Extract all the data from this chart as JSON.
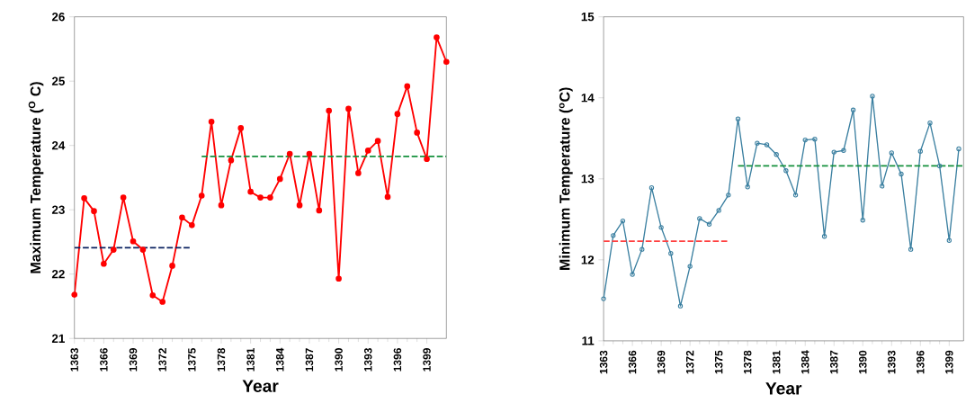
{
  "chart_data": [
    {
      "type": "line",
      "xlabel": "Year",
      "ylabel": "Maximum Temperature ($^{O}$ C)",
      "xlim": [
        1363,
        1401
      ],
      "ylim": [
        21,
        26
      ],
      "xticks": [
        1363,
        1366,
        1369,
        1372,
        1375,
        1378,
        1381,
        1384,
        1387,
        1390,
        1393,
        1396,
        1399
      ],
      "yticks": [
        21,
        22,
        23,
        24,
        25,
        26
      ],
      "grid": false,
      "series": [
        {
          "color": "#ff0000",
          "marker": "circle",
          "line_style": "solid",
          "x": [
            1363,
            1364,
            1365,
            1366,
            1367,
            1368,
            1369,
            1370,
            1371,
            1372,
            1373,
            1374,
            1375,
            1376,
            1377,
            1378,
            1379,
            1380,
            1381,
            1382,
            1383,
            1384,
            1385,
            1386,
            1387,
            1388,
            1389,
            1390,
            1391,
            1392,
            1393,
            1394,
            1395,
            1396,
            1397,
            1398,
            1399,
            1400,
            1401
          ],
          "values": [
            21.68,
            23.18,
            22.98,
            22.16,
            22.38,
            23.19,
            22.51,
            22.38,
            21.67,
            21.57,
            22.13,
            22.88,
            22.76,
            23.22,
            24.37,
            23.07,
            23.77,
            24.27,
            23.28,
            23.19,
            23.19,
            23.48,
            23.87,
            23.07,
            23.87,
            22.99,
            24.54,
            21.93,
            24.57,
            23.57,
            23.92,
            24.07,
            23.2,
            24.49,
            24.92,
            24.2,
            23.79,
            25.68,
            25.3
          ]
        },
        {
          "color": "#0b2260",
          "marker": "none",
          "line_style": "dashed",
          "x": [
            1363,
            1375
          ],
          "values": [
            22.41,
            22.41
          ]
        },
        {
          "color": "#14903c",
          "marker": "none",
          "line_style": "dashed",
          "x": [
            1376,
            1401
          ],
          "values": [
            23.83,
            23.83
          ]
        }
      ]
    },
    {
      "type": "line",
      "xlabel": "Year",
      "ylabel": "Minimum Temperature ($^{o}$C)",
      "xlim": [
        1363,
        1400.5
      ],
      "ylim": [
        11,
        15
      ],
      "xticks": [
        1363,
        1366,
        1369,
        1372,
        1375,
        1378,
        1381,
        1384,
        1387,
        1390,
        1393,
        1396,
        1399
      ],
      "yticks": [
        11,
        12,
        13,
        14,
        15
      ],
      "grid": false,
      "series": [
        {
          "color": "#3a7fa0",
          "marker": "circle",
          "line_style": "solid",
          "x": [
            1363,
            1364,
            1365,
            1366,
            1367,
            1368,
            1369,
            1370,
            1371,
            1372,
            1373,
            1374,
            1375,
            1376,
            1377,
            1378,
            1379,
            1380,
            1381,
            1382,
            1383,
            1384,
            1385,
            1386,
            1387,
            1388,
            1389,
            1390,
            1391,
            1392,
            1393,
            1394,
            1395,
            1396,
            1397,
            1398,
            1399,
            1400
          ],
          "values": [
            11.52,
            12.3,
            12.48,
            11.82,
            12.13,
            12.89,
            12.4,
            12.08,
            11.43,
            11.92,
            12.51,
            12.44,
            12.61,
            12.8,
            13.74,
            12.9,
            13.44,
            13.42,
            13.3,
            13.1,
            12.8,
            13.48,
            13.49,
            12.29,
            13.33,
            13.35,
            13.85,
            12.49,
            14.02,
            12.91,
            13.32,
            13.06,
            12.13,
            13.34,
            13.69,
            13.16,
            12.24,
            13.37
          ]
        },
        {
          "color": "#ff4040",
          "marker": "none",
          "line_style": "dashed",
          "x": [
            1363,
            1376
          ],
          "values": [
            12.23,
            12.23
          ]
        },
        {
          "color": "#14903c",
          "marker": "none",
          "line_style": "dashed",
          "x": [
            1377,
            1400.5
          ],
          "values": [
            13.16,
            13.16
          ]
        }
      ]
    }
  ]
}
